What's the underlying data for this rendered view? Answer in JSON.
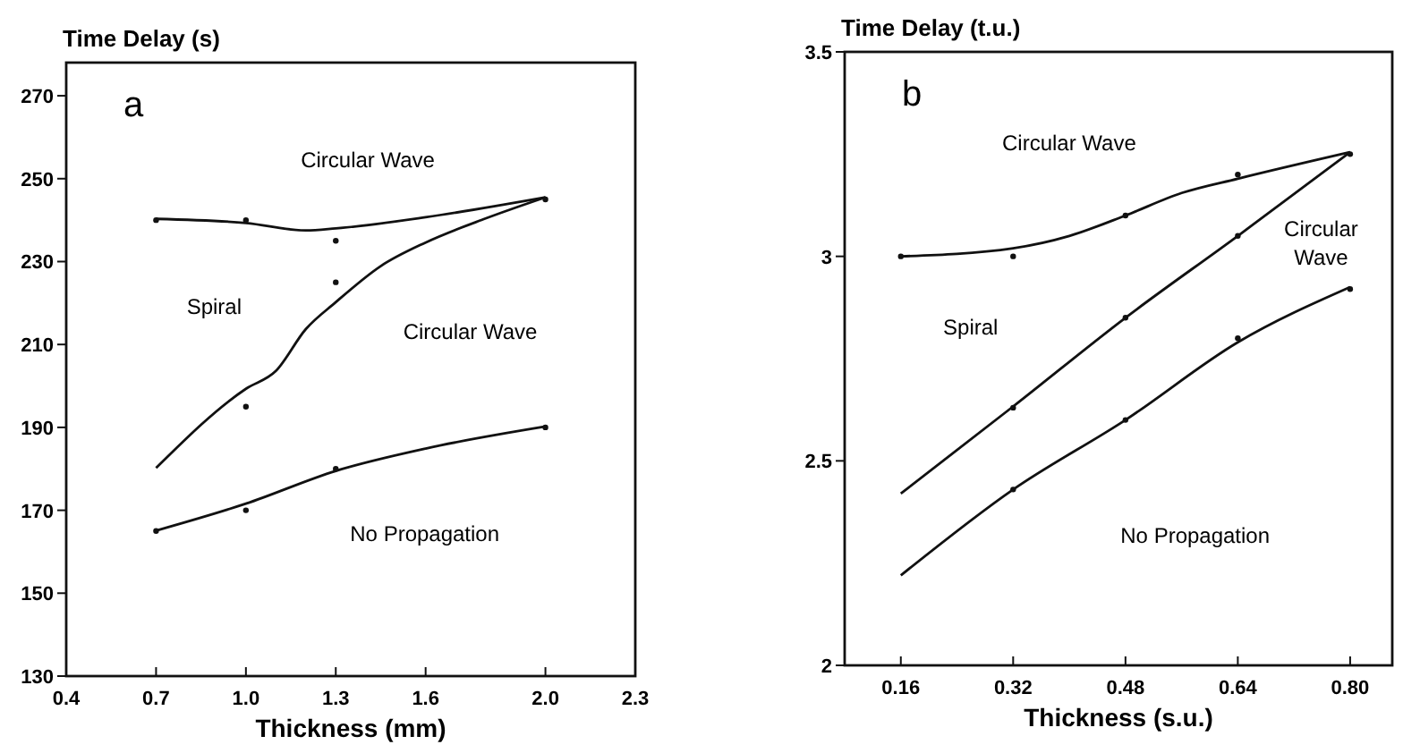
{
  "chart_data": [
    {
      "type": "line",
      "title": "a",
      "xlabel": "Thickness (mm)",
      "ylabel": "Time Delay (s)",
      "xlim": [
        0.4,
        2.3
      ],
      "ylim": [
        130,
        278
      ],
      "xticks": [
        0.4,
        0.7,
        {
          "value": 1,
          "label": "1.0"
        },
        1.3,
        1.6,
        {
          "value": 2,
          "label": "2.0"
        },
        2.3
      ],
      "yticks": [
        130,
        150,
        170,
        190,
        210,
        230,
        250,
        270
      ],
      "grid": false,
      "marker": "none",
      "line_style": "solid",
      "series": [
        {
          "color": "#111111",
          "x": [
            0.7,
            1.0,
            1.2,
            1.3,
            1.6,
            2.0
          ],
          "values": [
            240.3,
            239.3,
            237.5,
            238,
            240.7,
            245.5
          ]
        },
        {
          "color": "#111111",
          "x": [
            0.7,
            1.0,
            1.1,
            1.2,
            1.3,
            1.45,
            1.6,
            1.8,
            2.0
          ],
          "values": [
            180.2,
            199.3,
            203.6,
            213.7,
            220.2,
            228.9,
            234.6,
            240.4,
            245.5
          ]
        },
        {
          "color": "#111111",
          "x": [
            0.7,
            1.0,
            1.3,
            1.6,
            2.0
          ],
          "values": [
            165.1,
            171.6,
            179.5,
            184.9,
            190.2
          ]
        },
        {
          "type": "scatter",
          "color": "#111111",
          "marker": "circle",
          "x": [
            0.7,
            1.0,
            1.3,
            2.0,
            1.0,
            1.3,
            0.7,
            1.0,
            1.3,
            2.0
          ],
          "values": [
            240,
            240,
            235,
            245,
            195,
            225,
            165,
            170,
            180,
            190
          ]
        }
      ],
      "annotations": [
        "Circular Wave",
        "Spiral",
        "Circular Wave",
        "No Propagation"
      ]
    },
    {
      "type": "line",
      "title": "b",
      "xlabel": "Thickness (s.u.)",
      "ylabel": "Time Delay (t.u.)",
      "xlim": [
        0.08,
        0.86
      ],
      "ylim": [
        2,
        3.5
      ],
      "xticks": [
        0.16,
        0.32,
        0.48,
        0.64,
        {
          "value": 0.8,
          "label": "0.80"
        }
      ],
      "yticks": [
        2,
        2.5,
        3,
        3.5
      ],
      "grid": false,
      "marker": "none",
      "line_style": "solid",
      "series": [
        {
          "color": "#111111",
          "x": [
            0.16,
            0.32,
            0.4,
            0.48,
            0.56,
            0.64,
            0.8
          ],
          "values": [
            3.0,
            3.02,
            3.05,
            3.1,
            3.155,
            3.19,
            3.255
          ]
        },
        {
          "color": "#111111",
          "x": [
            0.16,
            0.32,
            0.48,
            0.64,
            0.8
          ],
          "values": [
            2.42,
            2.633,
            2.85,
            3.05,
            3.255
          ]
        },
        {
          "color": "#111111",
          "x": [
            0.16,
            0.32,
            0.48,
            0.64,
            0.8
          ],
          "values": [
            2.22,
            2.43,
            2.6,
            2.79,
            2.925
          ]
        },
        {
          "type": "scatter",
          "color": "#111111",
          "marker": "circle",
          "x": [
            0.16,
            0.32,
            0.48,
            0.64,
            0.8,
            0.32,
            0.48,
            0.64,
            0.32,
            0.48,
            0.64,
            0.8
          ],
          "values": [
            3.0,
            3.0,
            3.1,
            3.2,
            3.25,
            2.63,
            2.85,
            3.05,
            2.43,
            2.6,
            2.8,
            2.92
          ]
        }
      ],
      "annotations": [
        "Circular Wave",
        "Spiral",
        "Circular Wave",
        "No Propagation"
      ]
    }
  ]
}
